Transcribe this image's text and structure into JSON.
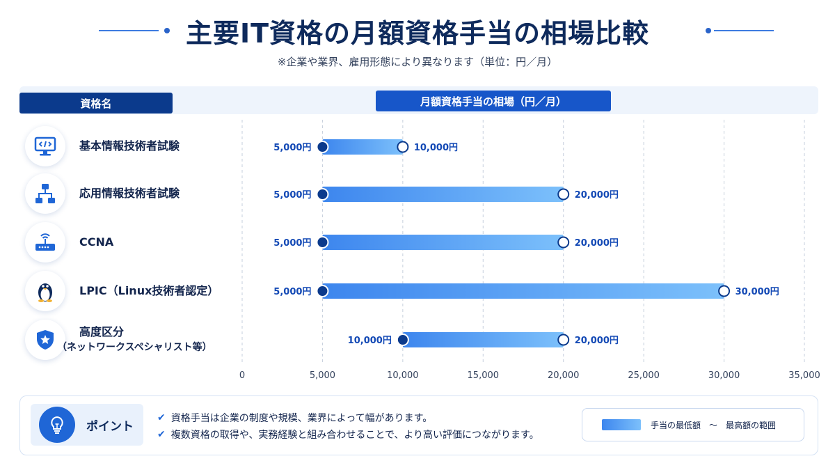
{
  "title": "主要IT資格の月額資格手当の相場比較",
  "subtitle": "※企業や業界、雇用形態により異なります（単位：円／月）",
  "header": {
    "name_col": "資格名",
    "range_col": "月額資格手当の相場（円／月）"
  },
  "rows": [
    {
      "label": "基本情報技術者試験",
      "sub": "",
      "icon": "computer-code-icon"
    },
    {
      "label": "応用情報技術者試験",
      "sub": "",
      "icon": "hierarchy-diagram-icon"
    },
    {
      "label": "CCNA",
      "sub": "",
      "icon": "router-icon"
    },
    {
      "label": "LPIC（Linux技術者認定）",
      "sub": "",
      "icon": "penguin-icon"
    },
    {
      "label": "高度区分",
      "sub": "（ネットワークスペシャリスト等）",
      "icon": "shield-star-icon"
    }
  ],
  "chart_data": {
    "type": "bar",
    "orientation": "horizontal-range",
    "categories": [
      "基本情報技術者試験",
      "応用情報技術者試験",
      "CCNA",
      "LPIC（Linux技術者認定）",
      "高度区分（ネットワークスペシャリスト等）"
    ],
    "min_values": [
      5000,
      5000,
      5000,
      5000,
      10000
    ],
    "max_values": [
      10000,
      20000,
      20000,
      30000,
      20000
    ],
    "min_labels": [
      "5,000円",
      "5,000円",
      "5,000円",
      "5,000円",
      "10,000円"
    ],
    "max_labels": [
      "10,000円",
      "20,000円",
      "20,000円",
      "30,000円",
      "20,000円"
    ],
    "xticks": [
      0,
      5000,
      10000,
      15000,
      20000,
      25000,
      30000,
      35000
    ],
    "xtick_labels": [
      "0",
      "5,000",
      "10,000",
      "15,000",
      "20,000",
      "25,000",
      "30,000",
      "35,000"
    ],
    "xlim": [
      0,
      35000
    ],
    "grid": true,
    "colors": {
      "bar_start": "#3d86ee",
      "bar_end": "#7cc0fb",
      "min_dot": "#0b3a8c",
      "label": "#1349b5",
      "grid": "#c6cfdc"
    }
  },
  "point": {
    "title": "ポイント",
    "items": [
      "資格手当は企業の制度や規模、業界によって幅があります。",
      "複数資格の取得や、実務経験と組み合わせることで、より高い評価につながります。"
    ]
  },
  "legend": {
    "text": "手当の最低額　～　最高額の範囲"
  }
}
